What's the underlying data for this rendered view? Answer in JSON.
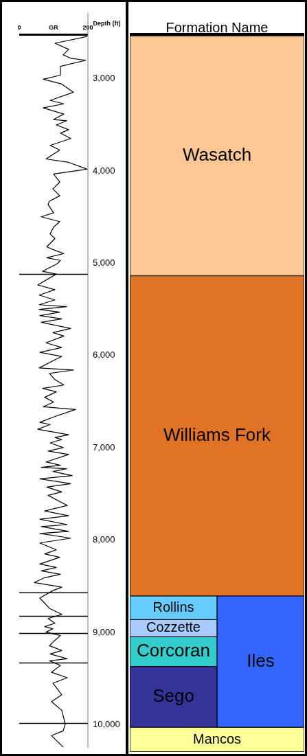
{
  "chart_data": [
    {
      "type": "line",
      "xlabel": "GR",
      "ylabel": "Depth (ft)",
      "orientation": "horizontal",
      "marker": "none",
      "xlim": [
        0,
        200
      ],
      "xticks": [
        0,
        200
      ],
      "ylim": [
        10250,
        2535
      ],
      "yticks": [
        {
          "value": 3000,
          "label": "3,000"
        },
        {
          "value": 4000,
          "label": "4,000"
        },
        {
          "value": 5000,
          "label": "5,000"
        },
        {
          "value": 6000,
          "label": "6,000"
        },
        {
          "value": 7000,
          "label": "7,000"
        },
        {
          "value": 8000,
          "label": "8,000"
        },
        {
          "value": 9000,
          "label": "9,000"
        },
        {
          "value": 10000,
          "label": "10,000"
        }
      ],
      "ref_lines": [
        {
          "axis": "y",
          "value": 5120,
          "color": "#000000"
        },
        {
          "axis": "y",
          "value": 8570,
          "color": "#000000"
        },
        {
          "axis": "y",
          "value": 8825,
          "color": "#000000"
        },
        {
          "axis": "y",
          "value": 9010,
          "color": "#000000"
        },
        {
          "axis": "y",
          "value": 9330,
          "color": "#000000"
        },
        {
          "axis": "y",
          "value": 9985,
          "color": "#000000"
        }
      ],
      "series": [
        {
          "color": "#000000",
          "x": [
            2543,
            2617,
            2683,
            2742,
            2779,
            2801,
            2867,
            2963,
            3007,
            3059,
            3148,
            3236,
            3273,
            3317,
            3384,
            3443,
            3457,
            3502,
            3553,
            3590,
            3649,
            3723,
            3774,
            3870,
            3907,
            3981,
            4033,
            4121,
            4195,
            4269,
            4328,
            4364,
            4453,
            4497,
            4549,
            4608,
            4682,
            4733,
            4822,
            4866,
            4895,
            4940,
            4969,
            5006,
            5087,
            5117,
            5235,
            5286,
            5345,
            5397,
            5449,
            5471,
            5500,
            5530,
            5567,
            5603,
            5640,
            5707,
            5751,
            5788,
            5862,
            5913,
            5965,
            6009,
            6046,
            6134,
            6157,
            6193,
            6260,
            6319,
            6356,
            6393,
            6452,
            6503,
            6555,
            6584,
            6665,
            6724,
            6747,
            6798,
            6857,
            6887,
            6909,
            6946,
            6997,
            7034,
            7071,
            7152,
            7189,
            7211,
            7226,
            7255,
            7300,
            7336,
            7388,
            7425,
            7477,
            7514,
            7624,
            7683,
            7735,
            7772,
            7831,
            7853,
            7904,
            7927,
            7978,
            8030,
            8104,
            8148,
            8185,
            8258,
            8295,
            8332,
            8369,
            8406,
            8458,
            8509,
            8546,
            8627,
            8738,
            8804,
            8848,
            8900,
            8937,
            8959,
            8996,
            9033,
            9084,
            9143,
            9195,
            9232,
            9284,
            9306,
            9357,
            9431,
            9490,
            9549,
            9674,
            9748,
            9844,
            9992,
            10065,
            10117,
            10242
          ],
          "values": [
            198,
            104,
            144,
            128,
            150,
            194,
            120,
            120,
            70,
            124,
            158,
            90,
            130,
            70,
            130,
            100,
            138,
            108,
            144,
            120,
            150,
            90,
            118,
            78,
            144,
            198,
            100,
            118,
            98,
            118,
            88,
            84,
            100,
            64,
            118,
            100,
            90,
            104,
            80,
            108,
            130,
            80,
            120,
            110,
            68,
            108,
            54,
            104,
            58,
            104,
            58,
            138,
            58,
            118,
            60,
            124,
            64,
            150,
            98,
            130,
            78,
            124,
            60,
            124,
            104,
            58,
            158,
            88,
            104,
            130,
            68,
            108,
            74,
            100,
            70,
            164,
            100,
            60,
            90,
            54,
            144,
            104,
            124,
            90,
            128,
            84,
            144,
            78,
            120,
            64,
            138,
            98,
            154,
            60,
            150,
            80,
            124,
            84,
            140,
            74,
            144,
            60,
            140,
            64,
            144,
            60,
            150,
            60,
            108,
            74,
            118,
            60,
            108,
            64,
            120,
            74,
            44,
            124,
            98,
            60,
            88,
            124,
            84,
            104,
            74,
            98,
            78,
            120,
            104,
            88,
            124,
            90,
            140,
            88,
            120,
            94,
            140,
            98,
            124,
            94,
            124,
            134,
            128,
            94,
            128
          ]
        }
      ]
    },
    {
      "type": "bar",
      "title": "Formation Name",
      "categories": [
        null,
        null
      ],
      "ylim": [
        10250,
        2535
      ],
      "tick_labels": false,
      "series": [
        {
          "name": "Wasatch",
          "color": "#fdc896",
          "base": [
            2535,
            2535
          ],
          "values": [
            2585,
            2585
          ]
        },
        {
          "name": "Williams Fork",
          "color": "#e07325",
          "base": [
            5120,
            5120
          ],
          "values": [
            3450,
            3450
          ]
        },
        {
          "name": "Rollins",
          "color": "#66ccff",
          "base": [
            8570,
            null
          ],
          "values": [
            255,
            null
          ]
        },
        {
          "name": "Cozzette",
          "color": "#a8ccff",
          "base": [
            8825,
            null
          ],
          "values": [
            185,
            null
          ]
        },
        {
          "name": "Corcoran",
          "color": "#33cccc",
          "base": [
            9010,
            null
          ],
          "values": [
            320,
            null
          ]
        },
        {
          "name": "Sego",
          "color": "#333399",
          "base": [
            9330,
            null
          ],
          "values": [
            655,
            null
          ]
        },
        {
          "name": "Iles",
          "color": "#3366ff",
          "base": [
            null,
            8570
          ],
          "values": [
            null,
            1415
          ]
        },
        {
          "name": "Mancos",
          "color": "#ffff99",
          "base": [
            9985,
            9985
          ],
          "values": [
            265,
            265
          ]
        }
      ]
    }
  ]
}
